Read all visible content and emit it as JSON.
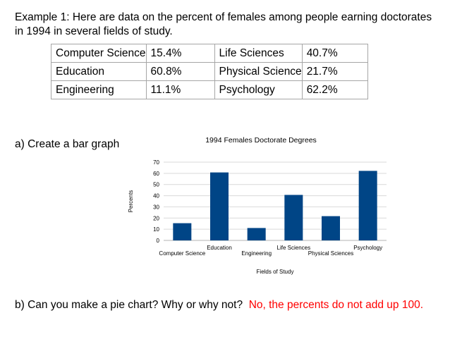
{
  "intro_text": "Example 1:  Here are data on the percent of females among people earning doctorates in 1994 in several fields of study.",
  "table": {
    "rows": [
      [
        "Computer Science",
        "15.4%",
        "Life Sciences",
        "40.7%"
      ],
      [
        "Education",
        "60.8%",
        "Physical Science",
        "21.7%"
      ],
      [
        "Engineering",
        "11.1%",
        "Psychology",
        "62.2%"
      ]
    ]
  },
  "question_a": "a) Create a bar graph",
  "question_b": "b) Can you make a pie chart? Why or why not?",
  "answer_b": "No, the percents do not add up 100.",
  "chart_data": {
    "type": "bar",
    "title": "1994 Females Doctorate Degrees",
    "xlabel": "Fields of Study",
    "ylabel": "Percents",
    "categories": [
      "Computer Science",
      "Education",
      "Engineering",
      "Life Sciences",
      "Physical Sciences",
      "Psychology"
    ],
    "values": [
      15.4,
      60.8,
      11.1,
      40.7,
      21.7,
      62.2
    ],
    "ylim": [
      0,
      70
    ],
    "yticks": [
      0,
      10,
      20,
      30,
      40,
      50,
      60,
      70
    ],
    "bar_color": "#004586",
    "grid": true,
    "legend": "none"
  }
}
